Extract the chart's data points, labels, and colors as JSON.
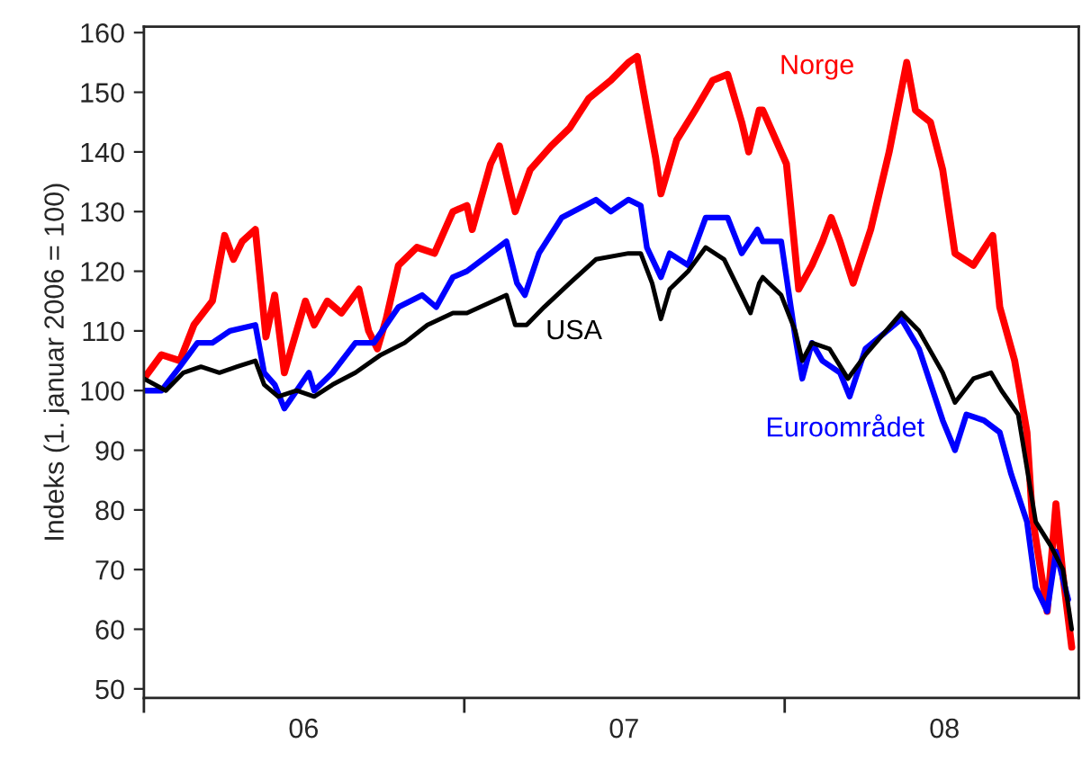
{
  "chart_data": {
    "type": "line",
    "ylabel": "Indeks (1. januar 2006 = 100)",
    "xlim": [
      "2006-01-01",
      "2008-12-01"
    ],
    "xticks": [
      {
        "value": "2006-01-01",
        "label": null
      },
      {
        "value": "2006-07-02",
        "label": "06"
      },
      {
        "value": "2007-01-01",
        "label": null
      },
      {
        "value": "2007-07-02",
        "label": "07"
      },
      {
        "value": "2008-01-01",
        "label": null
      },
      {
        "value": "2008-07-01",
        "label": "08"
      }
    ],
    "ylim": [
      48.5,
      161
    ],
    "yticks": [
      50,
      60,
      70,
      80,
      90,
      100,
      110,
      120,
      130,
      140,
      150,
      160
    ],
    "grid": false,
    "legend": false,
    "series": [
      {
        "name": "Norge",
        "color": "#ff0000",
        "x": [
          "2006-01-01",
          "2006-01-21",
          "2006-02-11",
          "2006-02-27",
          "2006-03-20",
          "2006-04-03",
          "2006-04-13",
          "2006-04-23",
          "2006-05-08",
          "2006-05-14",
          "2006-05-20",
          "2006-05-30",
          "2006-06-10",
          "2006-06-20",
          "2006-07-04",
          "2006-07-14",
          "2006-07-29",
          "2006-08-14",
          "2006-09-03",
          "2006-09-14",
          "2006-09-24",
          "2006-10-04",
          "2006-10-18",
          "2006-11-08",
          "2006-11-28",
          "2006-12-19",
          "2007-01-04",
          "2007-01-10",
          "2007-01-31",
          "2007-02-10",
          "2007-02-28",
          "2007-03-17",
          "2007-04-10",
          "2007-05-01",
          "2007-05-23",
          "2007-06-17",
          "2007-07-07",
          "2007-07-17",
          "2007-07-28",
          "2007-08-07",
          "2007-08-13",
          "2007-08-31",
          "2007-09-21",
          "2007-10-11",
          "2007-10-28",
          "2007-11-13",
          "2007-11-21",
          "2007-12-03",
          "2007-12-07",
          "2007-12-22",
          "2008-01-03",
          "2008-01-17",
          "2008-02-01",
          "2008-02-13",
          "2008-02-23",
          "2008-03-04",
          "2008-03-19",
          "2008-04-08",
          "2008-04-29",
          "2008-05-19",
          "2008-05-29",
          "2008-06-15",
          "2008-06-29",
          "2008-07-13",
          "2008-08-03",
          "2008-08-25",
          "2008-09-02",
          "2008-09-19",
          "2008-10-03",
          "2008-10-09",
          "2008-10-26",
          "2008-11-05",
          "2008-11-13",
          "2008-11-23"
        ],
        "values": [
          102,
          106,
          105,
          111,
          115,
          126,
          122,
          125,
          127,
          118,
          109,
          116,
          103,
          108,
          115,
          111,
          115,
          113,
          117,
          110,
          107,
          112,
          121,
          124,
          123,
          130,
          131,
          127,
          138,
          141,
          130,
          137,
          141,
          144,
          149,
          152,
          155,
          156,
          147,
          139,
          133,
          142,
          147,
          152,
          153,
          145,
          140,
          147,
          147,
          142,
          138,
          117,
          121,
          125,
          129,
          125,
          118,
          127,
          140,
          155,
          147,
          145,
          137,
          123,
          121,
          126,
          114,
          105,
          93,
          79,
          63,
          81,
          69,
          57
        ]
      },
      {
        "name": "Euroområdet",
        "color": "#0000ff",
        "x": [
          "2006-01-01",
          "2006-01-21",
          "2006-02-11",
          "2006-03-03",
          "2006-03-20",
          "2006-04-09",
          "2006-05-08",
          "2006-05-18",
          "2006-05-30",
          "2006-06-10",
          "2006-06-24",
          "2006-07-08",
          "2006-07-14",
          "2006-08-04",
          "2006-08-30",
          "2006-09-20",
          "2006-10-18",
          "2006-11-14",
          "2006-11-30",
          "2006-12-19",
          "2007-01-04",
          "2007-02-18",
          "2007-03-02",
          "2007-03-11",
          "2007-03-27",
          "2007-04-22",
          "2007-05-31",
          "2007-06-17",
          "2007-07-07",
          "2007-07-21",
          "2007-07-28",
          "2007-08-13",
          "2007-08-23",
          "2007-09-13",
          "2007-10-03",
          "2007-10-28",
          "2007-11-13",
          "2007-12-01",
          "2007-12-07",
          "2007-12-28",
          "2008-01-13",
          "2008-01-21",
          "2008-02-01",
          "2008-02-13",
          "2008-03-04",
          "2008-03-15",
          "2008-04-02",
          "2008-05-13",
          "2008-06-02",
          "2008-06-29",
          "2008-07-13",
          "2008-07-26",
          "2008-08-15",
          "2008-09-02",
          "2008-09-15",
          "2008-10-03",
          "2008-10-13",
          "2008-10-26",
          "2008-11-05",
          "2008-11-19"
        ],
        "values": [
          100,
          100,
          104,
          108,
          108,
          110,
          111,
          103,
          101,
          97,
          100,
          103,
          100,
          103,
          108,
          108,
          114,
          116,
          114,
          119,
          120,
          125,
          118,
          116,
          123,
          129,
          132,
          130,
          132,
          131,
          124,
          119,
          123,
          121,
          129,
          129,
          123,
          127,
          125,
          125,
          109,
          102,
          108,
          105,
          103,
          99,
          107,
          112,
          107,
          95,
          90,
          96,
          95,
          93,
          86,
          78,
          67,
          63,
          73,
          65
        ]
      },
      {
        "name": "USA",
        "color": "#000000",
        "x": [
          "2006-01-01",
          "2006-01-26",
          "2006-02-15",
          "2006-03-07",
          "2006-03-28",
          "2006-04-17",
          "2006-05-08",
          "2006-05-18",
          "2006-06-03",
          "2006-06-24",
          "2006-07-14",
          "2006-08-04",
          "2006-08-30",
          "2006-09-28",
          "2006-10-25",
          "2006-11-20",
          "2006-12-19",
          "2007-01-04",
          "2007-02-18",
          "2007-02-28",
          "2007-03-13",
          "2007-04-02",
          "2007-05-01",
          "2007-05-31",
          "2007-07-07",
          "2007-07-21",
          "2007-08-03",
          "2007-08-13",
          "2007-08-23",
          "2007-09-13",
          "2007-10-03",
          "2007-10-24",
          "2007-11-13",
          "2007-11-23",
          "2007-12-03",
          "2007-12-07",
          "2007-12-28",
          "2008-01-13",
          "2008-01-21",
          "2008-02-01",
          "2008-02-21",
          "2008-03-13",
          "2008-04-02",
          "2008-05-13",
          "2008-06-02",
          "2008-06-29",
          "2008-07-13",
          "2008-08-03",
          "2008-08-23",
          "2008-09-04",
          "2008-09-23",
          "2008-10-03",
          "2008-10-13",
          "2008-10-30",
          "2008-11-13",
          "2008-11-23"
        ],
        "values": [
          102,
          100,
          103,
          104,
          103,
          104,
          105,
          101,
          99,
          100,
          99,
          101,
          103,
          106,
          108,
          111,
          113,
          113,
          116,
          111,
          111,
          114,
          118,
          122,
          123,
          123,
          118,
          112,
          117,
          120,
          124,
          122,
          116,
          113,
          118,
          119,
          116,
          110,
          105,
          108,
          107,
          102,
          106,
          113,
          110,
          103,
          98,
          102,
          103,
          100,
          96,
          87,
          78,
          74,
          70,
          60
        ]
      }
    ]
  }
}
